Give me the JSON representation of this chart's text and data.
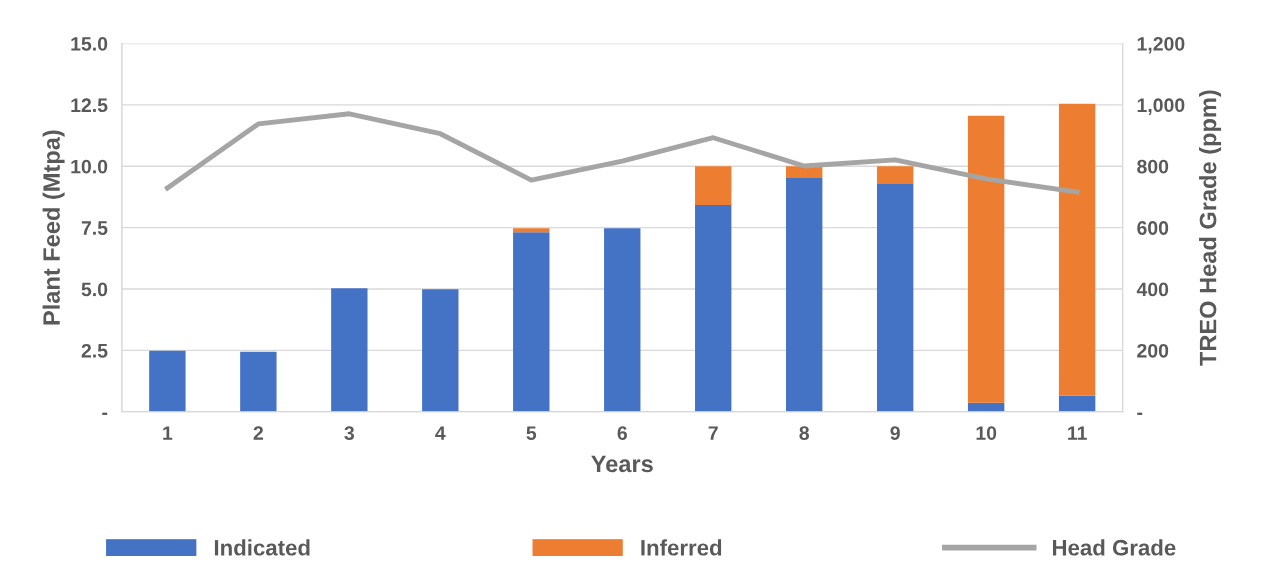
{
  "chart_data": {
    "type": "bar",
    "stacked": true,
    "xlabel": "Years",
    "ylabel": "Plant Feed (Mtpa)",
    "y2label": "TREO Head Grade (ppm)",
    "categories": [
      "1",
      "2",
      "3",
      "4",
      "5",
      "6",
      "7",
      "8",
      "9",
      "10",
      "11"
    ],
    "series": [
      {
        "name": "Indicated",
        "color": "#4472c4",
        "values": [
          2.49,
          2.45,
          5.03,
          4.99,
          7.31,
          7.48,
          8.42,
          9.52,
          9.28,
          0.37,
          0.65
        ]
      },
      {
        "name": "Inferred",
        "color": "#ed7d31",
        "values": [
          0,
          0,
          0,
          0,
          0.17,
          0,
          1.58,
          0.48,
          0.72,
          11.69,
          11.9
        ]
      },
      {
        "name": "Head Grade",
        "type": "line",
        "axis": "y2",
        "color": "#a5a5a5",
        "values": [
          729,
          938,
          971,
          906,
          755,
          817,
          893,
          801,
          821,
          759,
          716
        ]
      }
    ],
    "ylim": [
      0,
      15
    ],
    "yticks": [
      {
        "value": 0,
        "label": "-"
      },
      2.5,
      {
        "value": 5,
        "label": "5.0"
      },
      7.5,
      {
        "value": 10,
        "label": "10.0"
      },
      12.5,
      {
        "value": 15,
        "label": "15.0"
      }
    ],
    "y2lim": [
      0,
      1200
    ],
    "y2ticks": [
      {
        "value": 0,
        "label": "-"
      },
      {
        "value": 200,
        "label": "200"
      },
      {
        "value": 400,
        "label": "400"
      },
      {
        "value": 600,
        "label": "600"
      },
      {
        "value": 800,
        "label": "800"
      },
      {
        "value": 1000,
        "label": "1,000"
      },
      {
        "value": 1200,
        "label": "1,200"
      }
    ],
    "grid": "y",
    "legend": "bottom",
    "marker": "none",
    "line_style": "solid"
  }
}
